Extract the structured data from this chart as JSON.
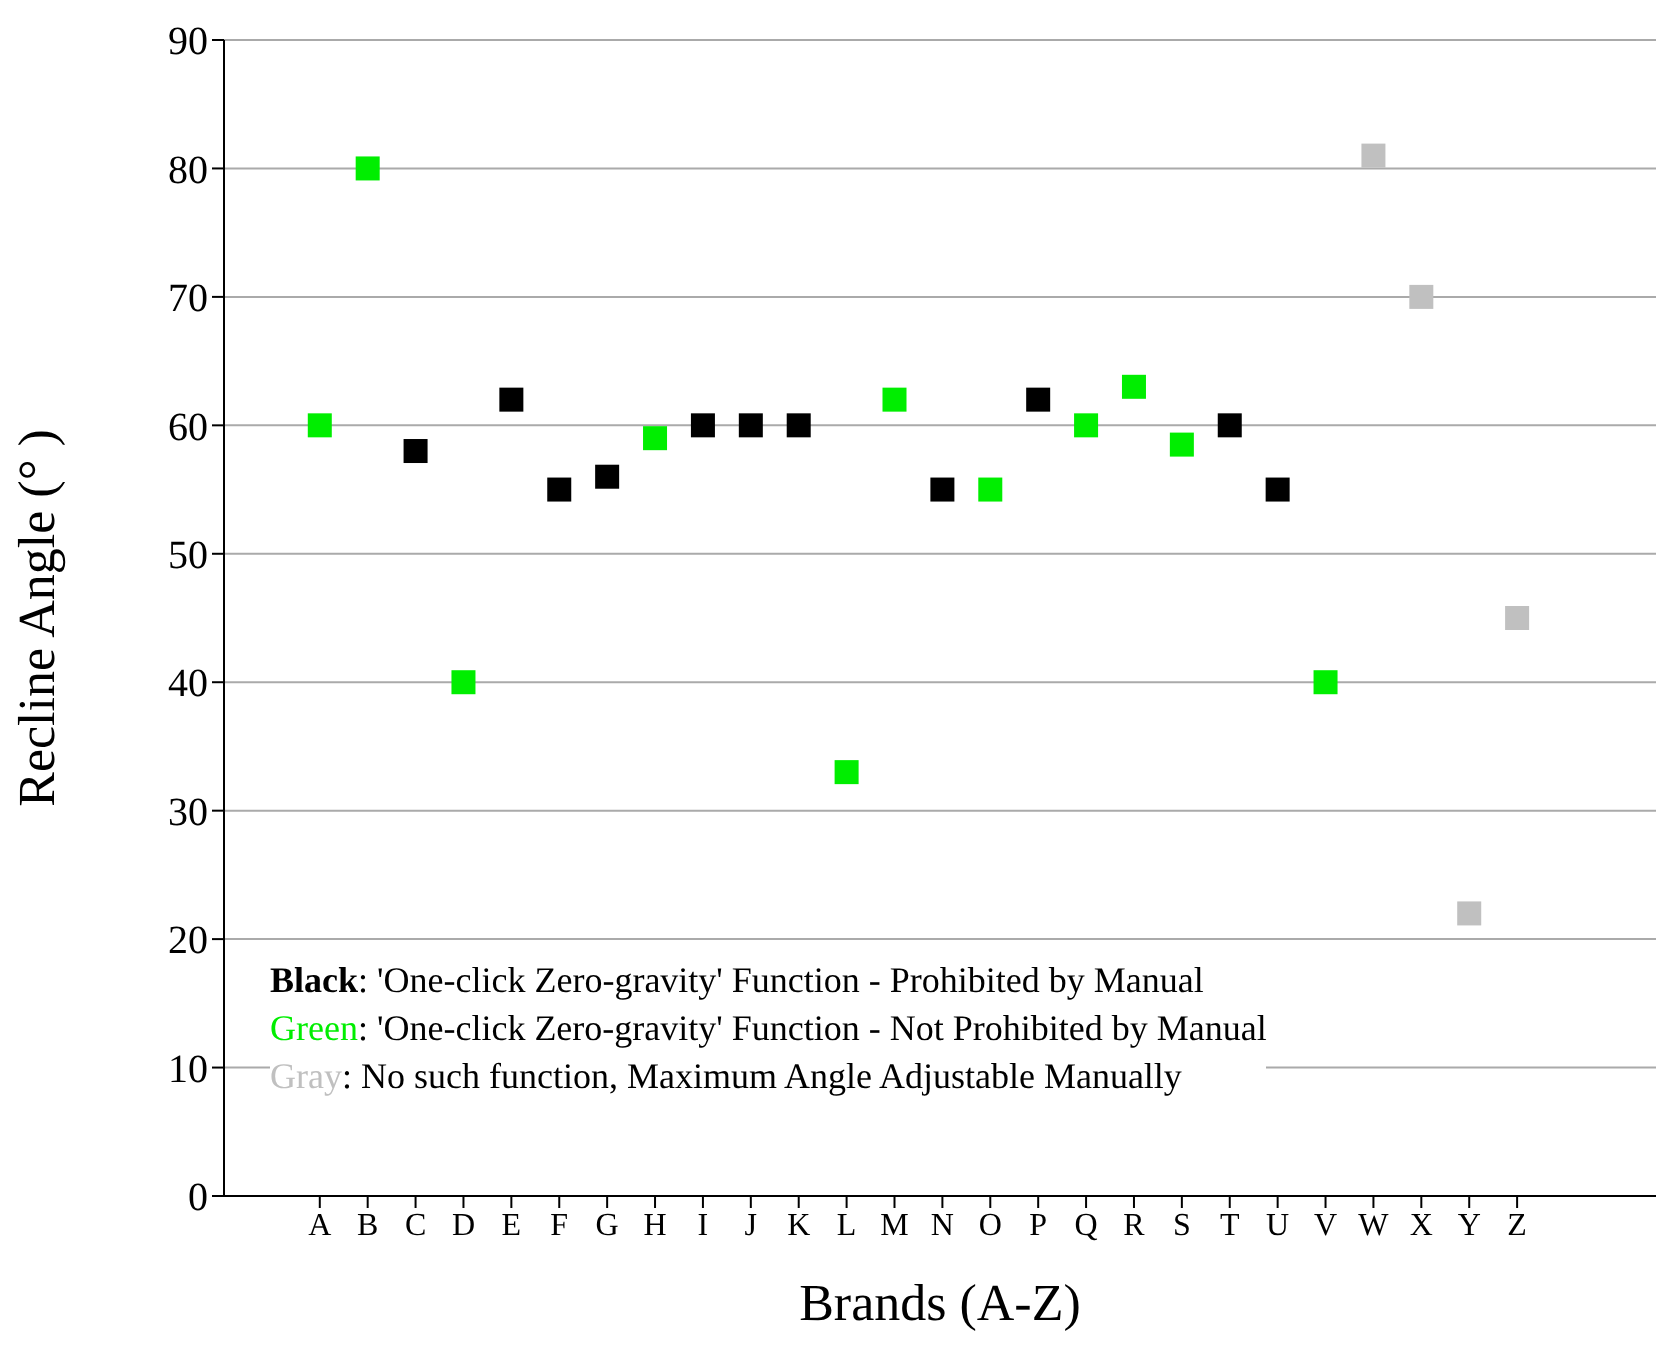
{
  "chart_data": {
    "type": "scatter",
    "xlabel": "Brands (A-Z)",
    "ylabel": "Recline Angle (° )",
    "categories": [
      "A",
      "B",
      "C",
      "D",
      "E",
      "F",
      "G",
      "H",
      "I",
      "J",
      "K",
      "L",
      "M",
      "N",
      "O",
      "P",
      "Q",
      "R",
      "S",
      "T",
      "U",
      "V",
      "W",
      "X",
      "Y",
      "Z"
    ],
    "series": [
      {
        "name": "Black: 'One-click Zero-gravity' Function - Prohibited by Manual",
        "color": "#000000",
        "values": [
          null,
          null,
          58,
          null,
          62,
          55,
          56,
          null,
          60,
          60,
          60,
          null,
          null,
          55,
          null,
          62,
          null,
          null,
          null,
          60,
          55,
          null,
          null,
          null,
          null,
          null
        ]
      },
      {
        "name": "Green: 'One-click Zero-gravity' Function - Not Prohibited by Manual",
        "color": "#00ee00",
        "values": [
          60,
          80,
          null,
          40,
          null,
          null,
          null,
          59,
          null,
          null,
          null,
          33,
          62,
          null,
          55,
          null,
          60,
          63,
          58.5,
          null,
          null,
          40,
          null,
          null,
          null,
          null
        ]
      },
      {
        "name": "Gray: No such function, Maximum Angle Adjustable Manually",
        "color": "#c0c0c0",
        "values": [
          null,
          null,
          null,
          null,
          null,
          null,
          null,
          null,
          null,
          null,
          null,
          null,
          null,
          null,
          null,
          null,
          null,
          null,
          null,
          null,
          null,
          null,
          81,
          70,
          22,
          45
        ]
      }
    ],
    "ylim": [
      0,
      90
    ],
    "yticks": [
      0,
      10,
      20,
      30,
      40,
      50,
      60,
      70,
      80,
      90
    ],
    "grid": "y",
    "legend": "bottom left",
    "marker": "square"
  }
}
